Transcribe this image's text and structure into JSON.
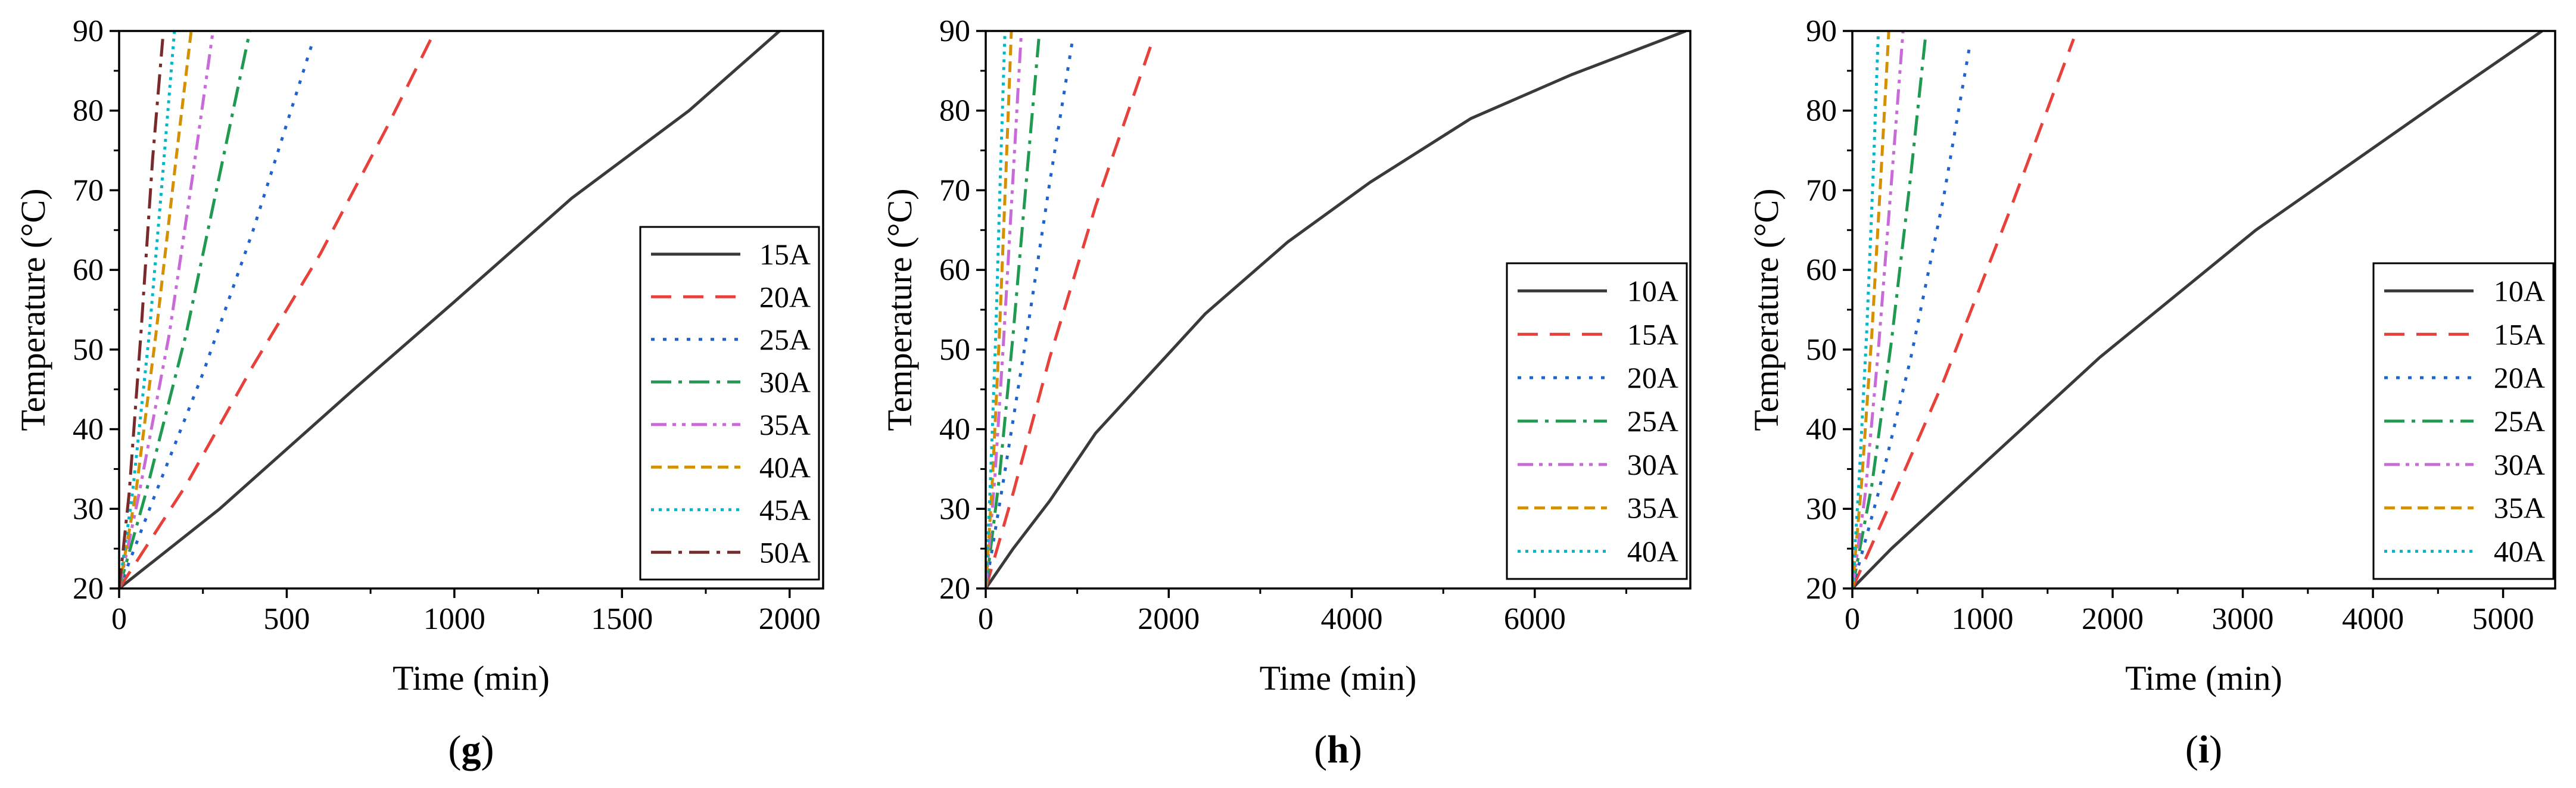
{
  "chart_data": [
    {
      "type": "line",
      "panel_label": "g",
      "xlabel": "Time (min)",
      "ylabel": "Temperature (°C)",
      "xlim": [
        0,
        2100
      ],
      "ylim": [
        20,
        90
      ],
      "xticks": [
        0,
        500,
        1000,
        1500,
        2000
      ],
      "yticks": [
        20,
        30,
        40,
        50,
        60,
        70,
        80,
        90
      ],
      "grid": false,
      "legend_position": "center-right",
      "series": [
        {
          "name": "15A",
          "color": "#3a3a3a",
          "dash": "solid",
          "x": [
            0,
            300,
            700,
            1000,
            1350,
            1700,
            1970
          ],
          "y": [
            20,
            30,
            45,
            56,
            69,
            80,
            90
          ]
        },
        {
          "name": "20A",
          "color": "#e8403a",
          "dash": "long-dash",
          "x": [
            0,
            200,
            400,
            600,
            800,
            930
          ],
          "y": [
            20,
            33,
            48,
            62,
            78,
            89
          ]
        },
        {
          "name": "25A",
          "color": "#1f63d0",
          "dash": "dot",
          "x": [
            0,
            100,
            250,
            400,
            580
          ],
          "y": [
            20,
            31,
            47,
            65,
            89
          ]
        },
        {
          "name": "30A",
          "color": "#1f9a50",
          "dash": "dash-dot",
          "x": [
            0,
            80,
            200,
            300,
            390
          ],
          "y": [
            20,
            32,
            52,
            72,
            90
          ]
        },
        {
          "name": "35A",
          "color": "#c86ad8",
          "dash": "dash-dot-dot",
          "x": [
            0,
            60,
            150,
            220,
            280
          ],
          "y": [
            20,
            32,
            52,
            72,
            90
          ]
        },
        {
          "name": "40A",
          "color": "#d49000",
          "dash": "short-dash",
          "x": [
            0,
            50,
            110,
            170,
            215
          ],
          "y": [
            20,
            32,
            52,
            74,
            90
          ]
        },
        {
          "name": "45A",
          "color": "#00b8c8",
          "dash": "short-dot",
          "x": [
            0,
            40,
            90,
            130,
            165
          ],
          "y": [
            20,
            32,
            52,
            72,
            90
          ]
        },
        {
          "name": "50A",
          "color": "#7a2a2a",
          "dash": "dash-dot",
          "x": [
            0,
            30,
            65,
            100,
            130
          ],
          "y": [
            20,
            32,
            52,
            74,
            89
          ]
        }
      ]
    },
    {
      "type": "line",
      "panel_label": "h",
      "xlabel": "Time (min)",
      "ylabel": "Temperature (°C)",
      "xlim": [
        0,
        7700
      ],
      "ylim": [
        20,
        90
      ],
      "xticks": [
        0,
        2000,
        4000,
        6000
      ],
      "yticks": [
        20,
        30,
        40,
        50,
        60,
        70,
        80,
        90
      ],
      "grid": false,
      "legend_position": "bottom-right",
      "series": [
        {
          "name": "10A",
          "color": "#3a3a3a",
          "dash": "solid",
          "x": [
            0,
            300,
            700,
            1200,
            1800,
            2400,
            3300,
            4200,
            5300,
            6400,
            7650
          ],
          "y": [
            20,
            25,
            31,
            39.5,
            47,
            54.5,
            63.5,
            71,
            79,
            84.5,
            90
          ]
        },
        {
          "name": "15A",
          "color": "#e8403a",
          "dash": "long-dash",
          "x": [
            0,
            300,
            700,
            1200,
            1800
          ],
          "y": [
            20,
            32,
            49,
            68,
            88
          ]
        },
        {
          "name": "20A",
          "color": "#1f63d0",
          "dash": "dot",
          "x": [
            0,
            200,
            450,
            700,
            950
          ],
          "y": [
            20,
            34,
            52,
            71,
            89
          ]
        },
        {
          "name": "25A",
          "color": "#1f9a50",
          "dash": "dash-dot",
          "x": [
            0,
            150,
            300,
            450,
            580
          ],
          "y": [
            20,
            34,
            52,
            72,
            89
          ]
        },
        {
          "name": "30A",
          "color": "#c86ad8",
          "dash": "dash-dot-dot",
          "x": [
            0,
            100,
            200,
            300,
            390
          ],
          "y": [
            20,
            34,
            52,
            72,
            90
          ]
        },
        {
          "name": "35A",
          "color": "#d49000",
          "dash": "short-dash",
          "x": [
            0,
            70,
            150,
            220,
            280
          ],
          "y": [
            20,
            33,
            52,
            72,
            90
          ]
        },
        {
          "name": "40A",
          "color": "#00b8c8",
          "dash": "short-dot",
          "x": [
            0,
            50,
            110,
            160,
            210
          ],
          "y": [
            20,
            33,
            52,
            72,
            90
          ]
        }
      ]
    },
    {
      "type": "line",
      "panel_label": "i",
      "xlabel": "Time (min)",
      "ylabel": "Temperature (°C)",
      "xlim": [
        0,
        5400
      ],
      "ylim": [
        20,
        90
      ],
      "xticks": [
        0,
        1000,
        2000,
        3000,
        4000,
        5000
      ],
      "yticks": [
        20,
        30,
        40,
        50,
        60,
        70,
        80,
        90
      ],
      "grid": false,
      "legend_position": "bottom-right",
      "series": [
        {
          "name": "10A",
          "color": "#3a3a3a",
          "dash": "solid",
          "x": [
            0,
            300,
            700,
            1100,
            1500,
            1900,
            2500,
            3100,
            3800,
            4500,
            5300
          ],
          "y": [
            20,
            25,
            31,
            37,
            43,
            49,
            57,
            65,
            73,
            81,
            90
          ]
        },
        {
          "name": "15A",
          "color": "#e8403a",
          "dash": "long-dash",
          "x": [
            0,
            300,
            700,
            1200,
            1700
          ],
          "y": [
            20,
            31,
            46,
            67,
            89
          ]
        },
        {
          "name": "20A",
          "color": "#1f63d0",
          "dash": "dot",
          "x": [
            0,
            200,
            450,
            700,
            900
          ],
          "y": [
            20,
            32,
            49,
            69,
            88
          ]
        },
        {
          "name": "25A",
          "color": "#1f9a50",
          "dash": "dash-dot",
          "x": [
            0,
            150,
            300,
            450,
            560
          ],
          "y": [
            20,
            33,
            51,
            72,
            89
          ]
        },
        {
          "name": "30A",
          "color": "#c86ad8",
          "dash": "dash-dot-dot",
          "x": [
            0,
            100,
            200,
            300,
            390
          ],
          "y": [
            20,
            32,
            50,
            71,
            90
          ]
        },
        {
          "name": "35A",
          "color": "#d49000",
          "dash": "short-dash",
          "x": [
            0,
            70,
            150,
            220,
            280
          ],
          "y": [
            20,
            33,
            52,
            72,
            90
          ]
        },
        {
          "name": "40A",
          "color": "#00b8c8",
          "dash": "short-dot",
          "x": [
            0,
            50,
            110,
            160,
            200
          ],
          "y": [
            20,
            33,
            52,
            72,
            90
          ]
        }
      ]
    }
  ]
}
